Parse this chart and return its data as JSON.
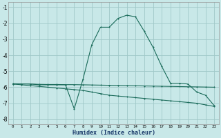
{
  "xlabel": "Humidex (Indice chaleur)",
  "bg_color": "#c8e8e8",
  "grid_color": "#a0c8c8",
  "line_color": "#1a6b5a",
  "xlim": [
    -0.5,
    23.5
  ],
  "ylim": [
    -8.3,
    -0.7
  ],
  "yticks": [
    -8,
    -7,
    -6,
    -5,
    -4,
    -3,
    -2,
    -1
  ],
  "xticks": [
    0,
    1,
    2,
    3,
    4,
    5,
    6,
    7,
    8,
    9,
    10,
    11,
    12,
    13,
    14,
    15,
    16,
    17,
    18,
    19,
    20,
    21,
    22,
    23
  ],
  "line1_x": [
    0,
    1,
    2,
    3,
    4,
    5,
    6,
    7,
    8,
    9,
    10,
    11,
    12,
    13,
    14,
    15,
    16,
    17,
    18,
    19,
    20,
    21,
    22,
    23
  ],
  "line1_y": [
    -5.8,
    -5.8,
    -5.8,
    -5.85,
    -5.85,
    -5.85,
    -5.85,
    -7.35,
    -5.5,
    -3.35,
    -2.25,
    -2.25,
    -1.7,
    -1.5,
    -1.6,
    -2.5,
    -3.5,
    -4.7,
    -5.75,
    -5.75,
    -5.8,
    -6.3,
    -6.5,
    -7.15
  ],
  "line2_x": [
    0,
    1,
    2,
    3,
    4,
    5,
    6,
    7,
    8,
    9,
    10,
    11,
    12,
    13,
    14,
    15,
    16,
    17,
    18,
    19,
    20,
    21,
    22,
    23
  ],
  "line2_y": [
    -5.78,
    -5.79,
    -5.8,
    -5.82,
    -5.83,
    -5.83,
    -5.84,
    -5.84,
    -5.85,
    -5.86,
    -5.87,
    -5.88,
    -5.89,
    -5.9,
    -5.91,
    -5.92,
    -5.93,
    -5.94,
    -5.95,
    -5.96,
    -5.97,
    -5.98,
    -5.99,
    -6.0
  ],
  "line3_x": [
    0,
    1,
    2,
    3,
    4,
    5,
    6,
    7,
    8,
    9,
    10,
    11,
    12,
    13,
    14,
    15,
    16,
    17,
    18,
    19,
    20,
    21,
    22,
    23
  ],
  "line3_y": [
    -5.8,
    -5.85,
    -5.9,
    -5.95,
    -6.0,
    -6.05,
    -6.1,
    -6.15,
    -6.2,
    -6.3,
    -6.4,
    -6.5,
    -6.55,
    -6.6,
    -6.65,
    -6.7,
    -6.75,
    -6.8,
    -6.85,
    -6.9,
    -6.95,
    -7.0,
    -7.1,
    -7.2
  ]
}
